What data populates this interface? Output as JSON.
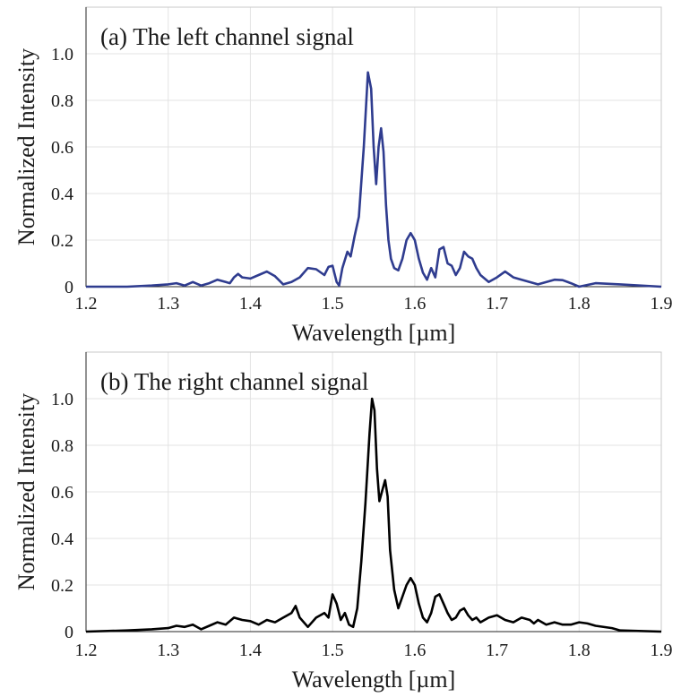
{
  "chart_data": [
    {
      "type": "line",
      "title": "(a) The left channel signal",
      "xlabel": "Wavelength [µm]",
      "ylabel": "Normalized Intensity",
      "xlim": [
        1.2,
        1.9
      ],
      "ylim": [
        0,
        1.2
      ],
      "xticks": [
        "1.2",
        "1.3",
        "1.4",
        "1.5",
        "1.6",
        "1.7",
        "1.8",
        "1.9"
      ],
      "yticks": [
        "0",
        "0.2",
        "0.4",
        "0.6",
        "0.8",
        "1.0"
      ],
      "grid": true,
      "color": "#2f3c8f",
      "series": [
        {
          "x": [
            1.2,
            1.25,
            1.28,
            1.3,
            1.31,
            1.32,
            1.33,
            1.34,
            1.35,
            1.36,
            1.37,
            1.375,
            1.38,
            1.385,
            1.39,
            1.4,
            1.41,
            1.42,
            1.43,
            1.44,
            1.45,
            1.46,
            1.47,
            1.48,
            1.49,
            1.495,
            1.5,
            1.505,
            1.508,
            1.512,
            1.518,
            1.522,
            1.527,
            1.532,
            1.538,
            1.543,
            1.547,
            1.55,
            1.553,
            1.556,
            1.559,
            1.562,
            1.565,
            1.568,
            1.571,
            1.575,
            1.58,
            1.585,
            1.59,
            1.595,
            1.6,
            1.605,
            1.61,
            1.615,
            1.62,
            1.625,
            1.63,
            1.635,
            1.64,
            1.645,
            1.65,
            1.655,
            1.66,
            1.665,
            1.67,
            1.675,
            1.68,
            1.69,
            1.7,
            1.71,
            1.72,
            1.73,
            1.75,
            1.77,
            1.78,
            1.79,
            1.8,
            1.82,
            1.85,
            1.9
          ],
          "y": [
            0.0,
            0.0,
            0.005,
            0.01,
            0.015,
            0.005,
            0.02,
            0.005,
            0.015,
            0.03,
            0.02,
            0.015,
            0.04,
            0.055,
            0.04,
            0.035,
            0.05,
            0.065,
            0.045,
            0.01,
            0.02,
            0.04,
            0.08,
            0.075,
            0.05,
            0.085,
            0.09,
            0.02,
            0.005,
            0.08,
            0.15,
            0.13,
            0.22,
            0.3,
            0.6,
            0.92,
            0.85,
            0.6,
            0.44,
            0.6,
            0.68,
            0.58,
            0.35,
            0.2,
            0.12,
            0.08,
            0.07,
            0.12,
            0.2,
            0.23,
            0.2,
            0.12,
            0.06,
            0.03,
            0.08,
            0.04,
            0.16,
            0.17,
            0.1,
            0.09,
            0.05,
            0.08,
            0.15,
            0.13,
            0.12,
            0.08,
            0.05,
            0.02,
            0.04,
            0.065,
            0.04,
            0.03,
            0.01,
            0.03,
            0.028,
            0.015,
            0.0,
            0.015,
            0.01,
            0.0
          ]
        }
      ]
    },
    {
      "type": "line",
      "title": "(b) The right channel signal",
      "xlabel": "Wavelength [µm]",
      "ylabel": "Normalized Intensity",
      "xlim": [
        1.2,
        1.9
      ],
      "ylim": [
        0,
        1.2
      ],
      "xticks": [
        "1.2",
        "1.3",
        "1.4",
        "1.5",
        "1.6",
        "1.7",
        "1.8",
        "1.9"
      ],
      "yticks": [
        "0",
        "0.2",
        "0.4",
        "0.6",
        "0.8",
        "1.0"
      ],
      "grid": true,
      "color": "#000000",
      "series": [
        {
          "x": [
            1.2,
            1.25,
            1.28,
            1.3,
            1.31,
            1.32,
            1.33,
            1.34,
            1.35,
            1.36,
            1.37,
            1.38,
            1.39,
            1.4,
            1.41,
            1.42,
            1.43,
            1.44,
            1.45,
            1.455,
            1.46,
            1.47,
            1.48,
            1.49,
            1.495,
            1.5,
            1.505,
            1.51,
            1.515,
            1.52,
            1.525,
            1.53,
            1.535,
            1.54,
            1.545,
            1.548,
            1.551,
            1.554,
            1.557,
            1.56,
            1.564,
            1.567,
            1.57,
            1.575,
            1.58,
            1.585,
            1.59,
            1.595,
            1.6,
            1.605,
            1.61,
            1.615,
            1.62,
            1.625,
            1.63,
            1.635,
            1.64,
            1.645,
            1.65,
            1.655,
            1.66,
            1.665,
            1.67,
            1.675,
            1.68,
            1.69,
            1.7,
            1.71,
            1.72,
            1.73,
            1.74,
            1.745,
            1.75,
            1.76,
            1.77,
            1.78,
            1.79,
            1.8,
            1.81,
            1.82,
            1.84,
            1.85,
            1.9
          ],
          "y": [
            0.0,
            0.005,
            0.01,
            0.015,
            0.025,
            0.02,
            0.03,
            0.01,
            0.025,
            0.04,
            0.03,
            0.06,
            0.05,
            0.045,
            0.03,
            0.05,
            0.04,
            0.06,
            0.08,
            0.11,
            0.06,
            0.02,
            0.06,
            0.08,
            0.06,
            0.16,
            0.12,
            0.05,
            0.08,
            0.03,
            0.02,
            0.1,
            0.3,
            0.55,
            0.85,
            1.0,
            0.95,
            0.7,
            0.56,
            0.6,
            0.65,
            0.58,
            0.35,
            0.18,
            0.1,
            0.15,
            0.2,
            0.23,
            0.2,
            0.12,
            0.06,
            0.04,
            0.08,
            0.15,
            0.16,
            0.12,
            0.08,
            0.05,
            0.06,
            0.09,
            0.1,
            0.07,
            0.05,
            0.06,
            0.04,
            0.06,
            0.07,
            0.05,
            0.04,
            0.06,
            0.05,
            0.035,
            0.05,
            0.03,
            0.04,
            0.03,
            0.03,
            0.04,
            0.035,
            0.025,
            0.015,
            0.005,
            0.0
          ]
        }
      ]
    }
  ]
}
